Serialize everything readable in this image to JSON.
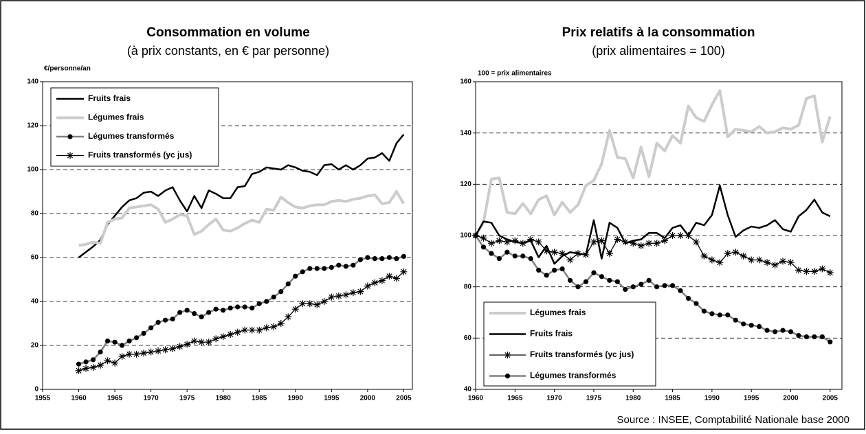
{
  "source": "Source : INSEE, Comptabilité Nationale base 2000",
  "chart_data": [
    {
      "type": "line",
      "title": "Consommation en volume",
      "subtitle": "(à prix constants, en € par personne)",
      "ylabel": "€/personne/an",
      "x": [
        1960,
        1961,
        1962,
        1963,
        1964,
        1965,
        1966,
        1967,
        1968,
        1969,
        1970,
        1971,
        1972,
        1973,
        1974,
        1975,
        1976,
        1977,
        1978,
        1979,
        1980,
        1981,
        1982,
        1983,
        1984,
        1985,
        1986,
        1987,
        1988,
        1989,
        1990,
        1991,
        1992,
        1993,
        1994,
        1995,
        1996,
        1997,
        1998,
        1999,
        2000,
        2001,
        2002,
        2003,
        2004,
        2005
      ],
      "xlim": [
        1955,
        2006.2
      ],
      "xticks": [
        1955,
        1960,
        1965,
        1970,
        1975,
        1980,
        1985,
        1990,
        1995,
        2000,
        2005
      ],
      "ylim": [
        0,
        140
      ],
      "yticks": [
        0,
        20,
        40,
        60,
        80,
        100,
        120,
        140
      ],
      "grid": true,
      "legend": "upper left",
      "series": [
        {
          "name": "Fruits frais",
          "color": "#000000",
          "marker": "none",
          "values": [
            60,
            62.5,
            65,
            68,
            75,
            79,
            83,
            86,
            87,
            89.5,
            90,
            88,
            90.5,
            92,
            86,
            81,
            88,
            82.5,
            90.5,
            89,
            87,
            87,
            92,
            92.5,
            98,
            99,
            101,
            100.5,
            100,
            102,
            101,
            99.5,
            99,
            97.5,
            102,
            102.5,
            100,
            102,
            100,
            102,
            105,
            105.5,
            107.5,
            104,
            112,
            116
          ]
        },
        {
          "name": "Légumes frais",
          "color": "#cccccc",
          "marker": "none",
          "values": [
            65.5,
            66,
            67,
            66.5,
            76,
            77.5,
            78,
            82.5,
            83,
            83.5,
            84,
            82,
            76,
            77.5,
            79.5,
            79,
            70.5,
            72,
            75,
            77.5,
            72.5,
            72,
            73.5,
            75.5,
            77,
            76,
            82,
            81.5,
            87.5,
            85,
            83,
            82.5,
            83.5,
            84,
            84,
            85.5,
            86,
            85.5,
            86.5,
            87,
            88,
            88.5,
            84.5,
            85,
            90,
            84.5
          ]
        },
        {
          "name": "Légumes transformés",
          "color": "#808080",
          "marker": "circle",
          "values": [
            11.5,
            12.5,
            13.5,
            17,
            22,
            21.5,
            20,
            22,
            23.5,
            25.5,
            28,
            30.5,
            31.5,
            32,
            35,
            36,
            34.5,
            33,
            35,
            36.5,
            36,
            37,
            37.5,
            37.5,
            37,
            39,
            40,
            42,
            44.5,
            48,
            51.5,
            53.5,
            55,
            55,
            55,
            55.5,
            56.5,
            56,
            56.5,
            59,
            60,
            59.5,
            59.5,
            60,
            59.5,
            60.5
          ]
        },
        {
          "name": "Fruits transformés (yc jus)",
          "color": "#000000",
          "marker": "star",
          "values": [
            8.5,
            9.5,
            10,
            11,
            13,
            12,
            15,
            16,
            16,
            16.5,
            17,
            17.5,
            18,
            18.5,
            19.5,
            20.5,
            22,
            21.5,
            21.5,
            23,
            24,
            25,
            26,
            27,
            27,
            27,
            28,
            28.5,
            30,
            33,
            36.5,
            39,
            39,
            38.5,
            40,
            42,
            42.5,
            43,
            44,
            44.5,
            47,
            48.5,
            49.5,
            51.5,
            50.5,
            53.5
          ]
        }
      ]
    },
    {
      "type": "line",
      "title": "Prix relatifs à la consommation",
      "subtitle": "(prix alimentaires = 100)",
      "ylabel": "100 = prix alimentaires",
      "x": [
        1960,
        1961,
        1962,
        1963,
        1964,
        1965,
        1966,
        1967,
        1968,
        1969,
        1970,
        1971,
        1972,
        1973,
        1974,
        1975,
        1976,
        1977,
        1978,
        1979,
        1980,
        1981,
        1982,
        1983,
        1984,
        1985,
        1986,
        1987,
        1988,
        1989,
        1990,
        1991,
        1992,
        1993,
        1994,
        1995,
        1996,
        1997,
        1998,
        1999,
        2000,
        2001,
        2002,
        2003,
        2004,
        2005
      ],
      "xlim": [
        1960,
        2006.5
      ],
      "xticks": [
        1960,
        1965,
        1970,
        1975,
        1980,
        1985,
        1990,
        1995,
        2000,
        2005
      ],
      "ylim": [
        40,
        160
      ],
      "yticks": [
        40,
        60,
        80,
        100,
        120,
        140,
        160
      ],
      "grid": true,
      "legend": "lower left",
      "series": [
        {
          "name": "Légumes frais",
          "color": "#cccccc",
          "marker": "none",
          "values": [
            100,
            105,
            122,
            122.5,
            109,
            108.5,
            112.5,
            108.5,
            114,
            115.5,
            108,
            113,
            109,
            112,
            119.5,
            121.5,
            128,
            141,
            130.5,
            130,
            122.5,
            134.5,
            123,
            136,
            133,
            139,
            136,
            150.5,
            146,
            144.5,
            151,
            156.5,
            138.5,
            141.5,
            141,
            140.5,
            142.5,
            140,
            140.5,
            142,
            141.5,
            143,
            153.5,
            154.5,
            136.5,
            146.5
          ]
        },
        {
          "name": "Fruits frais",
          "color": "#000000",
          "marker": "none",
          "values": [
            100,
            105.5,
            105,
            100,
            98.5,
            97.5,
            97,
            98,
            91.5,
            96,
            89,
            92,
            93.5,
            93,
            92.5,
            106,
            91,
            105,
            103,
            97,
            98,
            98.5,
            101,
            101,
            99,
            103,
            104,
            100,
            105,
            104,
            108,
            119.5,
            108,
            99.5,
            102,
            103.5,
            103,
            104,
            106,
            102.5,
            101.5,
            107.5,
            110,
            114,
            109,
            107.5
          ]
        },
        {
          "name": "Fruits transformés (yc jus)",
          "color": "#000000",
          "marker": "star",
          "values": [
            100,
            99,
            97,
            98,
            97.5,
            98,
            97,
            98.5,
            97.5,
            94,
            93.5,
            93,
            90.5,
            93,
            92.5,
            97.5,
            98,
            93,
            98.5,
            97.5,
            97,
            96,
            97,
            97,
            98,
            100,
            100,
            100,
            97.5,
            92,
            90.5,
            89.5,
            93,
            93.5,
            92,
            90.5,
            90.5,
            89.5,
            88.5,
            90,
            89.5,
            86.5,
            86,
            86,
            87,
            85.5
          ]
        },
        {
          "name": "Légumes transformés",
          "color": "#808080",
          "marker": "circle",
          "values": [
            100,
            95.5,
            93,
            91,
            93.5,
            92,
            92,
            91,
            86.5,
            84.5,
            86.5,
            87,
            82.5,
            80,
            82,
            85.5,
            84,
            82.5,
            82,
            79,
            80,
            81,
            82.5,
            80,
            80.5,
            80.5,
            78.5,
            75.5,
            73.5,
            70.5,
            69.5,
            69,
            69,
            67,
            65.5,
            65,
            64.5,
            63,
            62.5,
            63,
            62.5,
            61,
            60.5,
            60.5,
            60.5,
            58.5
          ]
        }
      ]
    }
  ]
}
